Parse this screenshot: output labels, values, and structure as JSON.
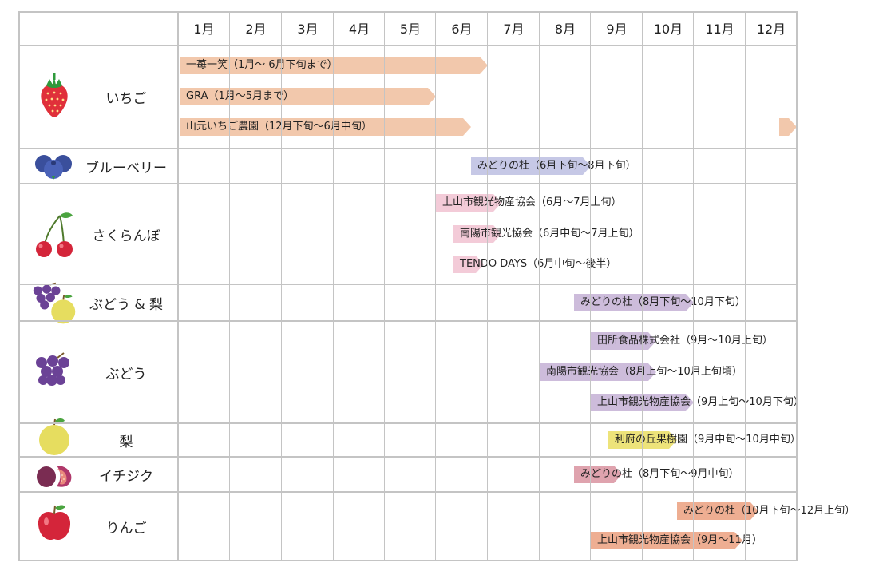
{
  "months": [
    "1月",
    "2月",
    "3月",
    "4月",
    "5月",
    "6月",
    "7月",
    "8月",
    "9月",
    "10月",
    "11月",
    "12月"
  ],
  "colors": {
    "strawberry": "#f2c8ac",
    "blueberry": "#c6c8e6",
    "cherry": "#f3cbd8",
    "grape_pear": "#cdbcdb",
    "grape": "#cdbcdb",
    "pear": "#ede37a",
    "fig": "#dfa3ae",
    "apple": "#eeae92"
  },
  "fruits": [
    {
      "name": "いちご",
      "icon": "strawberry-icon"
    },
    {
      "name": "ブルーベリー",
      "icon": "blueberry-icon"
    },
    {
      "name": "さくらんぼ",
      "icon": "cherry-icon"
    },
    {
      "name": "ぶどう & 梨",
      "icon": "grape-pear-icon"
    },
    {
      "name": "ぶどう",
      "icon": "grape-icon"
    },
    {
      "name": "梨",
      "icon": "pear-icon"
    },
    {
      "name": "イチジク",
      "icon": "fig-icon"
    },
    {
      "name": "りんご",
      "icon": "apple-icon"
    }
  ],
  "bars": [
    {
      "label": "一苺一笑（1月～ 6月下旬まで）",
      "start": 1,
      "end": 6.9,
      "color": "strawberry"
    },
    {
      "label": "GRA（1月～5月まで）",
      "start": 1,
      "end": 5.9,
      "color": "strawberry"
    },
    {
      "label": "山元いちご農園（12月下旬～6月中旬）",
      "start": 1,
      "end": 6.6,
      "color": "strawberry"
    },
    {
      "label": "",
      "start": 12.65,
      "end": 13,
      "color": "strawberry"
    },
    {
      "label": "みどりの杜（6月下旬～8月下旬）",
      "start": 6.7,
      "end": 8.9,
      "color": "blueberry"
    },
    {
      "label": "上山市観光物産協会（6月～7月上旬）",
      "start": 6,
      "end": 7.3,
      "color": "cherry"
    },
    {
      "label": "南陽市観光協会（6月中旬～7月上旬）",
      "start": 6.35,
      "end": 7.3,
      "color": "cherry"
    },
    {
      "label": "TENDO DAYS（6月中旬～後半）",
      "start": 6.35,
      "end": 6.95,
      "color": "cherry"
    },
    {
      "label": "みどりの杜（8月下旬～10月下旬）",
      "start": 8.65,
      "end": 10.9,
      "color": "grape_pear"
    },
    {
      "label": "田所食品株式会社（9月～10月上旬）",
      "start": 9,
      "end": 10.25,
      "color": "grape"
    },
    {
      "label": "南陽市観光協会（8月上旬～10月上旬頃）",
      "start": 8,
      "end": 10.25,
      "color": "grape"
    },
    {
      "label": "上山市観光物産協会（9月上旬～10月下旬）",
      "start": 9,
      "end": 10.9,
      "color": "grape"
    },
    {
      "label": "利府の丘果樹園（9月中旬～10月中旬）",
      "start": 9.35,
      "end": 10.6,
      "color": "pear"
    },
    {
      "label": "みどりの杜（8月下旬～9月中旬）",
      "start": 8.65,
      "end": 9.6,
      "color": "fig"
    },
    {
      "label": "みどりの杜（10月下旬～12月上旬）",
      "start": 10.65,
      "end": 12.25,
      "color": "apple"
    },
    {
      "label": "上山市観光物産協会（9月～11月）",
      "start": 9,
      "end": 11.9,
      "color": "apple"
    }
  ]
}
